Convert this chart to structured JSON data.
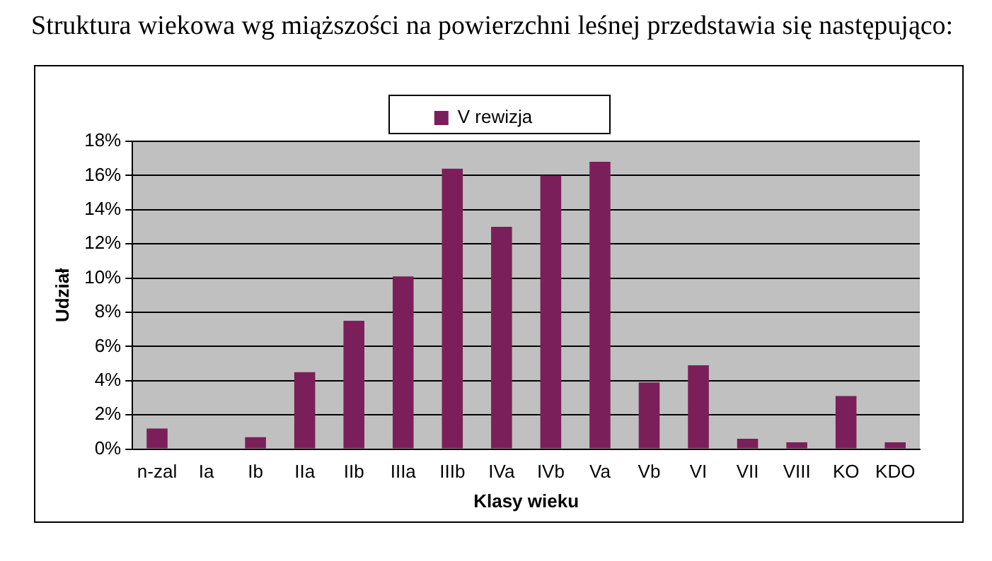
{
  "chart_data": {
    "type": "bar",
    "title": "Struktura wiekowa wg miąższości na powierzchni leśnej przedstawia się następująco:",
    "xlabel": "Klasy wieku",
    "ylabel": "Udział",
    "categories": [
      "n-zal",
      "Ia",
      "Ib",
      "IIa",
      "IIb",
      "IIIa",
      "IIIb",
      "IVa",
      "IVb",
      "Va",
      "Vb",
      "VI",
      "VII",
      "VIII",
      "KO",
      "KDO"
    ],
    "series": [
      {
        "name": "V rewizja",
        "color": "#7b1f5a",
        "values": [
          1.2,
          0,
          0.7,
          4.5,
          7.5,
          10.1,
          16.4,
          13.0,
          16.0,
          16.8,
          3.9,
          4.9,
          0.6,
          0.4,
          3.1,
          0.4
        ]
      }
    ],
    "ylim": [
      0,
      18
    ],
    "yticks": [
      {
        "value": 0,
        "label": "0%"
      },
      {
        "value": 2,
        "label": "2%"
      },
      {
        "value": 4,
        "label": "4%"
      },
      {
        "value": 6,
        "label": "6%"
      },
      {
        "value": 8,
        "label": "8%"
      },
      {
        "value": 10,
        "label": "10%"
      },
      {
        "value": 12,
        "label": "12%"
      },
      {
        "value": 14,
        "label": "14%"
      },
      {
        "value": 16,
        "label": "16%"
      },
      {
        "value": 18,
        "label": "18%"
      }
    ],
    "grid": "y",
    "legend": "top"
  }
}
